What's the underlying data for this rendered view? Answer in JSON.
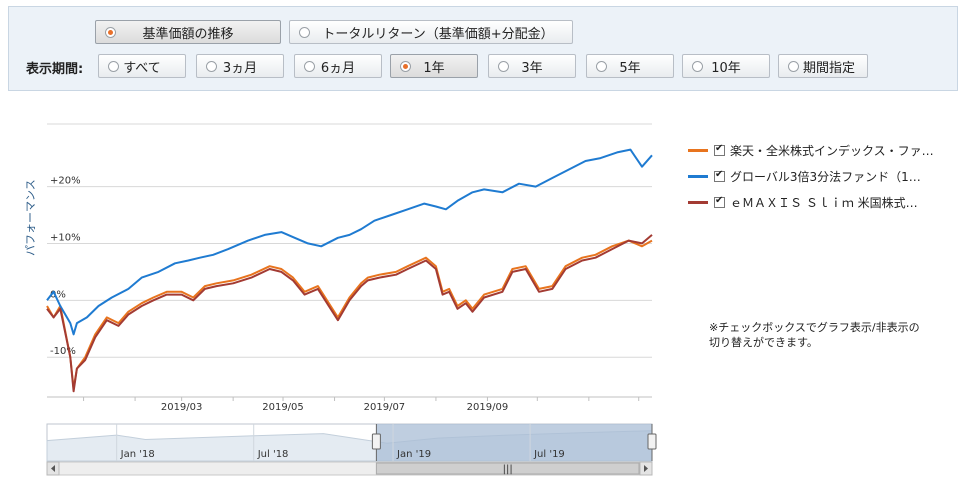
{
  "controls": {
    "mode_buttons": [
      {
        "label": "基準価額の推移",
        "selected": true
      },
      {
        "label": "トータルリターン（基準価額+分配金）",
        "selected": false
      }
    ],
    "period_label": "表示期間:",
    "period_buttons": [
      {
        "label": "すべて",
        "selected": false
      },
      {
        "label": "3ヵ月",
        "selected": false
      },
      {
        "label": "6ヵ月",
        "selected": false
      },
      {
        "label": "1年",
        "selected": true
      },
      {
        "label": "3年",
        "selected": false
      },
      {
        "label": "5年",
        "selected": false
      },
      {
        "label": "10年",
        "selected": false
      },
      {
        "label": "期間指定",
        "selected": false
      }
    ]
  },
  "legend": {
    "items": [
      {
        "label": "楽天・全米株式インデックス・ファ…",
        "color": "#e8741e",
        "checked": true
      },
      {
        "label": "グローバル3倍3分法ファンド（1…",
        "color": "#1f7bd1",
        "checked": true
      },
      {
        "label": "ｅＭＡＸＩＳ Ｓｌｉｍ 米国株式…",
        "color": "#a33b33",
        "checked": true
      }
    ],
    "note": "※チェックボックスでグラフ表示/非表示の\n切り替えができます。"
  },
  "chart_data": {
    "type": "line",
    "ylabel": "パフォーマンス",
    "y_unit": "%",
    "ylim": [
      -17,
      31
    ],
    "y_ticks": [
      {
        "value": 20,
        "label": "+20%"
      },
      {
        "value": 10,
        "label": "+10%"
      },
      {
        "value": 0,
        "label": "0%"
      },
      {
        "value": -10,
        "label": "-10%"
      }
    ],
    "x_range": [
      "2018-12-10",
      "2019-12-09"
    ],
    "x_ticks": [
      {
        "date": "2019-03-01",
        "label": "2019/03"
      },
      {
        "date": "2019-05-01",
        "label": "2019/05"
      },
      {
        "date": "2019-07-01",
        "label": "2019/07"
      },
      {
        "date": "2019-09-01",
        "label": "2019/09"
      }
    ],
    "grid": true,
    "legend_position": "right",
    "series": [
      {
        "name": "楽天・全米株式インデックス・ファ…",
        "color": "#e8741e",
        "points": [
          [
            "2018-12-10",
            -1
          ],
          [
            "2018-12-14",
            -3
          ],
          [
            "2018-12-18",
            -1
          ],
          [
            "2018-12-24",
            -10
          ],
          [
            "2018-12-26",
            -15.5
          ],
          [
            "2018-12-28",
            -12
          ],
          [
            "2019-01-02",
            -10
          ],
          [
            "2019-01-08",
            -6
          ],
          [
            "2019-01-15",
            -3
          ],
          [
            "2019-01-22",
            -4
          ],
          [
            "2019-01-28",
            -2
          ],
          [
            "2019-02-05",
            -0.5
          ],
          [
            "2019-02-12",
            0.5
          ],
          [
            "2019-02-20",
            1.5
          ],
          [
            "2019-03-01",
            1.5
          ],
          [
            "2019-03-08",
            0.5
          ],
          [
            "2019-03-15",
            2.5
          ],
          [
            "2019-03-22",
            3
          ],
          [
            "2019-04-01",
            3.5
          ],
          [
            "2019-04-12",
            4.5
          ],
          [
            "2019-04-23",
            6
          ],
          [
            "2019-04-30",
            5.5
          ],
          [
            "2019-05-07",
            4
          ],
          [
            "2019-05-14",
            1.5
          ],
          [
            "2019-05-22",
            2.5
          ],
          [
            "2019-06-03",
            -3
          ],
          [
            "2019-06-10",
            0.5
          ],
          [
            "2019-06-17",
            3
          ],
          [
            "2019-06-21",
            4
          ],
          [
            "2019-06-28",
            4.5
          ],
          [
            "2019-07-08",
            5
          ],
          [
            "2019-07-15",
            6
          ],
          [
            "2019-07-26",
            7.5
          ],
          [
            "2019-08-01",
            6
          ],
          [
            "2019-08-05",
            1.5
          ],
          [
            "2019-08-09",
            2
          ],
          [
            "2019-08-14",
            -1
          ],
          [
            "2019-08-19",
            0
          ],
          [
            "2019-08-23",
            -1.5
          ],
          [
            "2019-08-30",
            1
          ],
          [
            "2019-09-10",
            2
          ],
          [
            "2019-09-16",
            5.5
          ],
          [
            "2019-09-24",
            6
          ],
          [
            "2019-10-02",
            2
          ],
          [
            "2019-10-10",
            2.5
          ],
          [
            "2019-10-18",
            6
          ],
          [
            "2019-10-28",
            7.5
          ],
          [
            "2019-11-05",
            8
          ],
          [
            "2019-11-15",
            9.5
          ],
          [
            "2019-11-25",
            10.5
          ],
          [
            "2019-12-03",
            9.5
          ],
          [
            "2019-12-09",
            10.5
          ]
        ]
      },
      {
        "name": "グローバル3倍3分法ファンド（1…",
        "color": "#1f7bd1",
        "points": [
          [
            "2018-12-10",
            0
          ],
          [
            "2018-12-14",
            1.5
          ],
          [
            "2018-12-18",
            -1
          ],
          [
            "2018-12-24",
            -4
          ],
          [
            "2018-12-26",
            -6
          ],
          [
            "2018-12-28",
            -4
          ],
          [
            "2019-01-03",
            -3
          ],
          [
            "2019-01-10",
            -1
          ],
          [
            "2019-01-18",
            0.5
          ],
          [
            "2019-01-28",
            2
          ],
          [
            "2019-02-05",
            4
          ],
          [
            "2019-02-15",
            5
          ],
          [
            "2019-02-25",
            6.5
          ],
          [
            "2019-03-05",
            7
          ],
          [
            "2019-03-12",
            7.5
          ],
          [
            "2019-03-20",
            8
          ],
          [
            "2019-03-29",
            9
          ],
          [
            "2019-04-10",
            10.5
          ],
          [
            "2019-04-20",
            11.5
          ],
          [
            "2019-04-30",
            12
          ],
          [
            "2019-05-08",
            11
          ],
          [
            "2019-05-16",
            10
          ],
          [
            "2019-05-24",
            9.5
          ],
          [
            "2019-06-03",
            11
          ],
          [
            "2019-06-10",
            11.5
          ],
          [
            "2019-06-17",
            12.5
          ],
          [
            "2019-06-25",
            14
          ],
          [
            "2019-07-05",
            15
          ],
          [
            "2019-07-15",
            16
          ],
          [
            "2019-07-25",
            17
          ],
          [
            "2019-08-01",
            16.5
          ],
          [
            "2019-08-07",
            16
          ],
          [
            "2019-08-14",
            17.5
          ],
          [
            "2019-08-23",
            19
          ],
          [
            "2019-08-30",
            19.5
          ],
          [
            "2019-09-10",
            19
          ],
          [
            "2019-09-20",
            20.5
          ],
          [
            "2019-09-30",
            20
          ],
          [
            "2019-10-10",
            21.5
          ],
          [
            "2019-10-20",
            23
          ],
          [
            "2019-10-30",
            24.5
          ],
          [
            "2019-11-08",
            25
          ],
          [
            "2019-11-18",
            26
          ],
          [
            "2019-11-26",
            26.5
          ],
          [
            "2019-12-03",
            23.5
          ],
          [
            "2019-12-09",
            25.5
          ]
        ]
      },
      {
        "name": "ｅＭＡＸＩＳ Ｓｌｉｍ 米国株式…",
        "color": "#a33b33",
        "points": [
          [
            "2018-12-10",
            -1.5
          ],
          [
            "2018-12-14",
            -3
          ],
          [
            "2018-12-18",
            -1.5
          ],
          [
            "2018-12-24",
            -10
          ],
          [
            "2018-12-26",
            -16
          ],
          [
            "2018-12-28",
            -12
          ],
          [
            "2019-01-02",
            -10.5
          ],
          [
            "2019-01-08",
            -6.5
          ],
          [
            "2019-01-15",
            -3.5
          ],
          [
            "2019-01-22",
            -4.5
          ],
          [
            "2019-01-28",
            -2.5
          ],
          [
            "2019-02-05",
            -1
          ],
          [
            "2019-02-12",
            0
          ],
          [
            "2019-02-20",
            1
          ],
          [
            "2019-03-01",
            1
          ],
          [
            "2019-03-08",
            0
          ],
          [
            "2019-03-15",
            2
          ],
          [
            "2019-03-22",
            2.5
          ],
          [
            "2019-04-01",
            3
          ],
          [
            "2019-04-12",
            4
          ],
          [
            "2019-04-23",
            5.5
          ],
          [
            "2019-04-30",
            5
          ],
          [
            "2019-05-07",
            3.5
          ],
          [
            "2019-05-14",
            1
          ],
          [
            "2019-05-22",
            2
          ],
          [
            "2019-06-03",
            -3.5
          ],
          [
            "2019-06-10",
            0
          ],
          [
            "2019-06-17",
            2.5
          ],
          [
            "2019-06-21",
            3.5
          ],
          [
            "2019-06-28",
            4
          ],
          [
            "2019-07-08",
            4.5
          ],
          [
            "2019-07-15",
            5.5
          ],
          [
            "2019-07-26",
            7
          ],
          [
            "2019-08-01",
            5.5
          ],
          [
            "2019-08-05",
            1
          ],
          [
            "2019-08-09",
            1.5
          ],
          [
            "2019-08-14",
            -1.5
          ],
          [
            "2019-08-19",
            -0.5
          ],
          [
            "2019-08-23",
            -2
          ],
          [
            "2019-08-30",
            0.5
          ],
          [
            "2019-09-10",
            1.5
          ],
          [
            "2019-09-16",
            5
          ],
          [
            "2019-09-24",
            5.5
          ],
          [
            "2019-10-02",
            1.5
          ],
          [
            "2019-10-10",
            2
          ],
          [
            "2019-10-18",
            5.5
          ],
          [
            "2019-10-28",
            7
          ],
          [
            "2019-11-05",
            7.5
          ],
          [
            "2019-11-15",
            9
          ],
          [
            "2019-11-25",
            10.5
          ],
          [
            "2019-12-03",
            10
          ],
          [
            "2019-12-09",
            11.5
          ]
        ]
      }
    ],
    "navigator": {
      "x_ticks": [
        {
          "date": "2018-01-01",
          "label": "Jan '18"
        },
        {
          "date": "2018-07-01",
          "label": "Jul '18"
        },
        {
          "date": "2019-01-01",
          "label": "Jan '19"
        },
        {
          "date": "2019-07-01",
          "label": "Jul '19"
        }
      ],
      "x_range": [
        "2017-10-01",
        "2019-12-09"
      ],
      "selected_range": [
        "2018-12-10",
        "2019-12-09"
      ]
    }
  }
}
